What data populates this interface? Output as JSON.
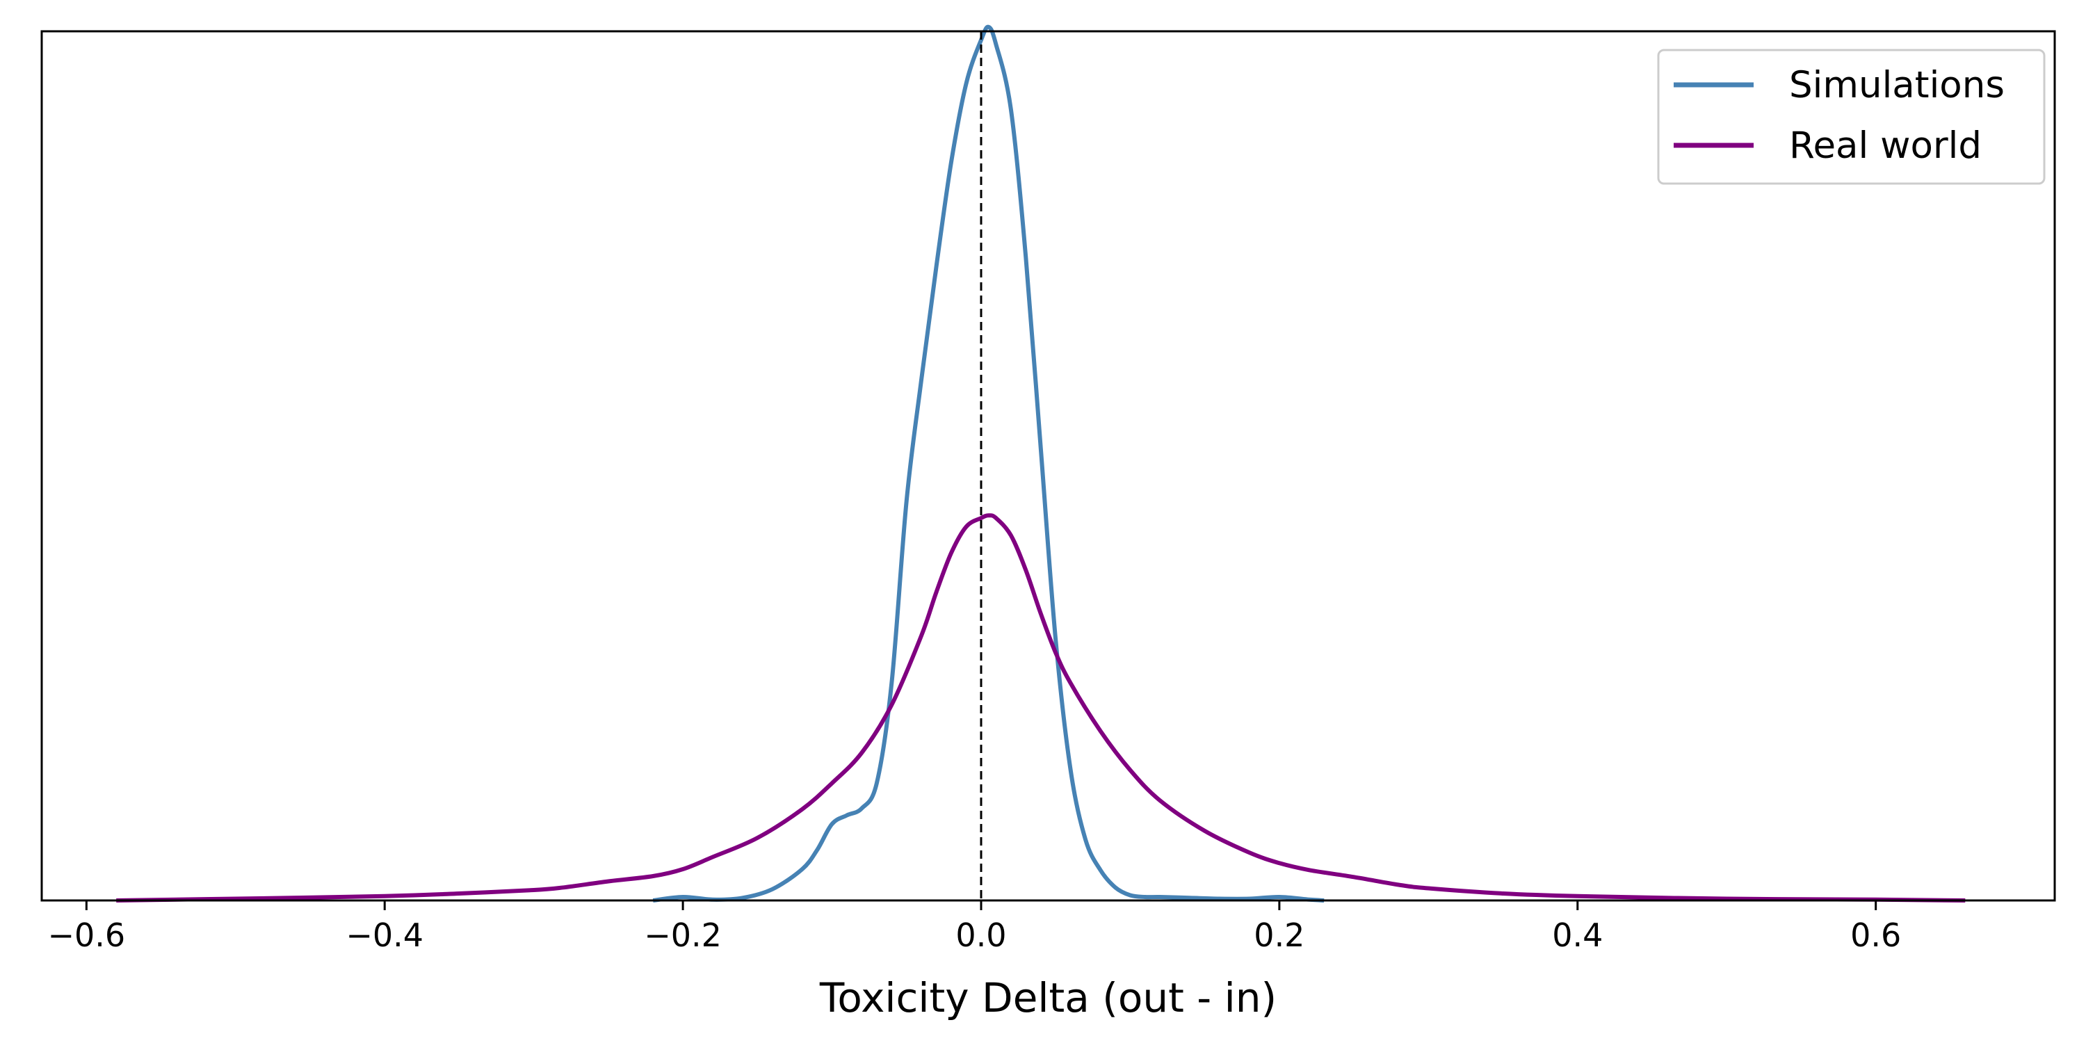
{
  "chart_data": {
    "type": "line",
    "title": "",
    "xlabel": "Toxicity Delta (out - in)",
    "ylabel": "",
    "xlim": [
      -0.63,
      0.72
    ],
    "ylim": [
      0,
      1.0
    ],
    "x_ticks": [
      -0.6,
      -0.4,
      -0.2,
      0.0,
      0.2,
      0.4,
      0.6
    ],
    "x_tick_labels": [
      "−0.6",
      "−0.4",
      "−0.2",
      "0.0",
      "0.2",
      "0.4",
      "0.6"
    ],
    "y_ticks_shown": false,
    "grid": false,
    "legend_position": "top-right",
    "reference_line": {
      "x": 0.0,
      "style": "dashed",
      "color": "#000000"
    },
    "series": [
      {
        "name": "Simulations",
        "color": "#4682b4",
        "x": [
          -0.22,
          -0.2,
          -0.18,
          -0.16,
          -0.14,
          -0.12,
          -0.11,
          -0.1,
          -0.09,
          -0.08,
          -0.07,
          -0.06,
          -0.05,
          -0.04,
          -0.03,
          -0.02,
          -0.01,
          0.0,
          0.005,
          0.01,
          0.02,
          0.03,
          0.04,
          0.05,
          0.06,
          0.07,
          0.08,
          0.09,
          0.1,
          0.11,
          0.12,
          0.14,
          0.16,
          0.18,
          0.2,
          0.22,
          0.23
        ],
        "y": [
          0.0,
          0.004,
          0.001,
          0.003,
          0.013,
          0.036,
          0.058,
          0.088,
          0.098,
          0.106,
          0.135,
          0.25,
          0.46,
          0.6,
          0.73,
          0.85,
          0.94,
          0.99,
          1.005,
          0.985,
          0.91,
          0.74,
          0.52,
          0.3,
          0.15,
          0.07,
          0.035,
          0.015,
          0.006,
          0.004,
          0.004,
          0.003,
          0.002,
          0.002,
          0.004,
          0.001,
          0.0
        ]
      },
      {
        "name": "Real world",
        "color": "#800080",
        "x": [
          -0.58,
          -0.5,
          -0.4,
          -0.35,
          -0.3,
          -0.28,
          -0.25,
          -0.22,
          -0.2,
          -0.18,
          -0.15,
          -0.12,
          -0.1,
          -0.08,
          -0.06,
          -0.04,
          -0.03,
          -0.02,
          -0.01,
          0.0,
          0.005,
          0.01,
          0.02,
          0.03,
          0.04,
          0.05,
          0.06,
          0.08,
          0.1,
          0.12,
          0.15,
          0.18,
          0.2,
          0.22,
          0.25,
          0.28,
          0.3,
          0.35,
          0.4,
          0.5,
          0.6,
          0.66
        ],
        "y": [
          0.0,
          0.002,
          0.005,
          0.008,
          0.012,
          0.015,
          0.022,
          0.028,
          0.036,
          0.05,
          0.072,
          0.105,
          0.135,
          0.17,
          0.225,
          0.305,
          0.355,
          0.4,
          0.43,
          0.44,
          0.443,
          0.44,
          0.42,
          0.38,
          0.33,
          0.285,
          0.25,
          0.195,
          0.15,
          0.115,
          0.08,
          0.055,
          0.043,
          0.035,
          0.027,
          0.018,
          0.014,
          0.008,
          0.005,
          0.002,
          0.001,
          0.0
        ]
      }
    ]
  },
  "colors": {
    "axis": "#000000",
    "background": "#ffffff"
  }
}
